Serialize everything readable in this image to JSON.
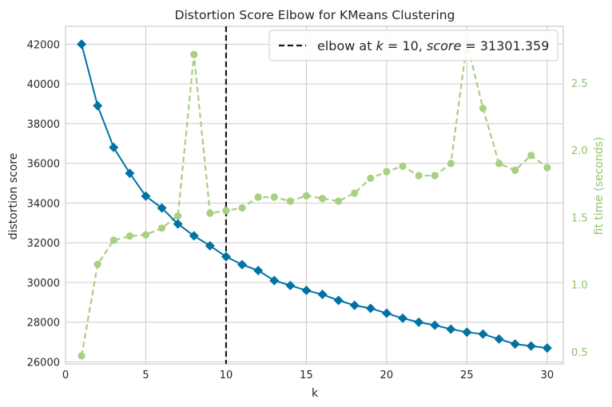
{
  "chart_data": {
    "type": "line",
    "title": "Distortion Score Elbow for KMeans Clustering",
    "xlabel": "k",
    "ylabel": "distortion score",
    "y2label": "fit time (seconds)",
    "xlim": [
      0,
      31
    ],
    "ylim": [
      25900,
      42900
    ],
    "y2lim": [
      0.41,
      2.92
    ],
    "xticks": [
      0,
      5,
      10,
      15,
      20,
      25,
      30
    ],
    "yticks": [
      26000,
      28000,
      30000,
      32000,
      34000,
      36000,
      38000,
      40000,
      42000
    ],
    "y2ticks": [
      0.5,
      1.0,
      1.5,
      2.0,
      2.5
    ],
    "xtick_labels": [
      "0",
      "5",
      "10",
      "15",
      "20",
      "25",
      "30"
    ],
    "ytick_labels": [
      "26000",
      "28000",
      "30000",
      "32000",
      "34000",
      "36000",
      "38000",
      "40000",
      "42000"
    ],
    "y2tick_labels": [
      "0.5",
      "1.0",
      "1.5",
      "2.0",
      "2.5"
    ],
    "grid": true,
    "colors": {
      "distortion": "#0072a3",
      "fit_time": "#a8cf83",
      "elbow": "#1a1a1a",
      "grid": "#cccccc",
      "y2label": "#8fc36a"
    },
    "series": [
      {
        "axis": "left",
        "x": [
          1,
          2,
          3,
          4,
          5,
          6,
          7,
          8,
          9,
          10,
          11,
          12,
          13,
          14,
          15,
          16,
          17,
          18,
          19,
          20,
          21,
          22,
          23,
          24,
          25,
          26,
          27,
          28,
          29,
          30
        ],
        "values": [
          42000,
          38900,
          36800,
          35500,
          34350,
          33750,
          32950,
          32350,
          31850,
          31301,
          30900,
          30600,
          30100,
          29850,
          29600,
          29400,
          29100,
          28850,
          28700,
          28450,
          28200,
          28000,
          27850,
          27650,
          27500,
          27400,
          27150,
          26900,
          26800,
          26700
        ]
      },
      {
        "axis": "right",
        "x": [
          1,
          2,
          3,
          4,
          5,
          6,
          7,
          8,
          9,
          10,
          11,
          12,
          13,
          14,
          15,
          16,
          17,
          18,
          19,
          20,
          21,
          22,
          23,
          24,
          25,
          26,
          27,
          28,
          29,
          30
        ],
        "values": [
          0.47,
          1.15,
          1.33,
          1.36,
          1.37,
          1.42,
          1.51,
          2.71,
          1.53,
          1.55,
          1.57,
          1.65,
          1.65,
          1.62,
          1.66,
          1.64,
          1.62,
          1.68,
          1.79,
          1.84,
          1.88,
          1.81,
          1.81,
          1.9,
          2.8,
          2.31,
          1.9,
          1.85,
          1.96,
          1.87
        ]
      }
    ],
    "elbow": {
      "x": 10,
      "label_prefix": "elbow at ",
      "label_k": "k",
      "label_eq1": " = 10, ",
      "label_score": "score",
      "label_eq2": " = 31301.359"
    }
  }
}
